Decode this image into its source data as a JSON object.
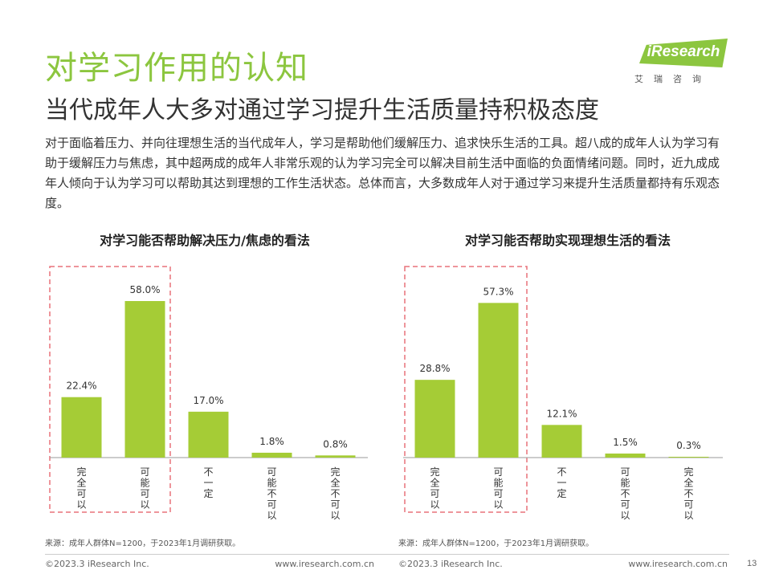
{
  "header": {
    "title": "对学习作用的认知",
    "subtitle": "当代成年人大多对通过学习提升生活质量持积极态度",
    "logo_text": "iResearch",
    "logo_cn": "艾瑞咨询"
  },
  "intro": "对于面临着压力、并向往理想生活的当代成年人，学习是帮助他们缓解压力、追求快乐生活的工具。超八成的成年人认为学习有助于缓解压力与焦虑，其中超两成的成年人非常乐观的认为学习完全可以解决目前生活中面临的负面情绪问题。同时，近九成成年人倾向于认为学习可以帮助其达到理想的工作生活状态。总体而言，大多数成年人对于通过学习来提升生活质量都持有乐观态度。",
  "colors": {
    "accent": "#8cc63f",
    "bar": "#a5cc36",
    "highlight_box": "#e8727a"
  },
  "chart_data": [
    {
      "type": "bar",
      "title": "对学习能否帮助解决压力/焦虑的看法",
      "categories": [
        "完全可以",
        "可能可以",
        "不一定",
        "可能不可以",
        "完全不可以"
      ],
      "values": [
        22.4,
        58.0,
        17.0,
        1.8,
        0.8
      ],
      "value_labels": [
        "22.4%",
        "58.0%",
        "17.0%",
        "1.8%",
        "0.8%"
      ],
      "highlighted_categories": [
        "完全可以",
        "可能可以"
      ],
      "source": "来源：成年人群体N=1200，于2023年1月调研获取。",
      "copyright": "©2023.3 iResearch Inc.",
      "website": "www.iresearch.com.cn"
    },
    {
      "type": "bar",
      "title": "对学习能否帮助实现理想生活的看法",
      "categories": [
        "完全可以",
        "可能可以",
        "不一定",
        "可能不可以",
        "完全不可以"
      ],
      "values": [
        28.8,
        57.3,
        12.1,
        1.5,
        0.3
      ],
      "value_labels": [
        "28.8%",
        "57.3%",
        "12.1%",
        "1.5%",
        "0.3%"
      ],
      "highlighted_categories": [
        "完全可以",
        "可能可以"
      ],
      "source": "来源：成年人群体N=1200，于2023年1月调研获取。",
      "copyright": "©2023.3 iResearch Inc.",
      "website": "www.iresearch.com.cn"
    }
  ],
  "page_number": "13"
}
